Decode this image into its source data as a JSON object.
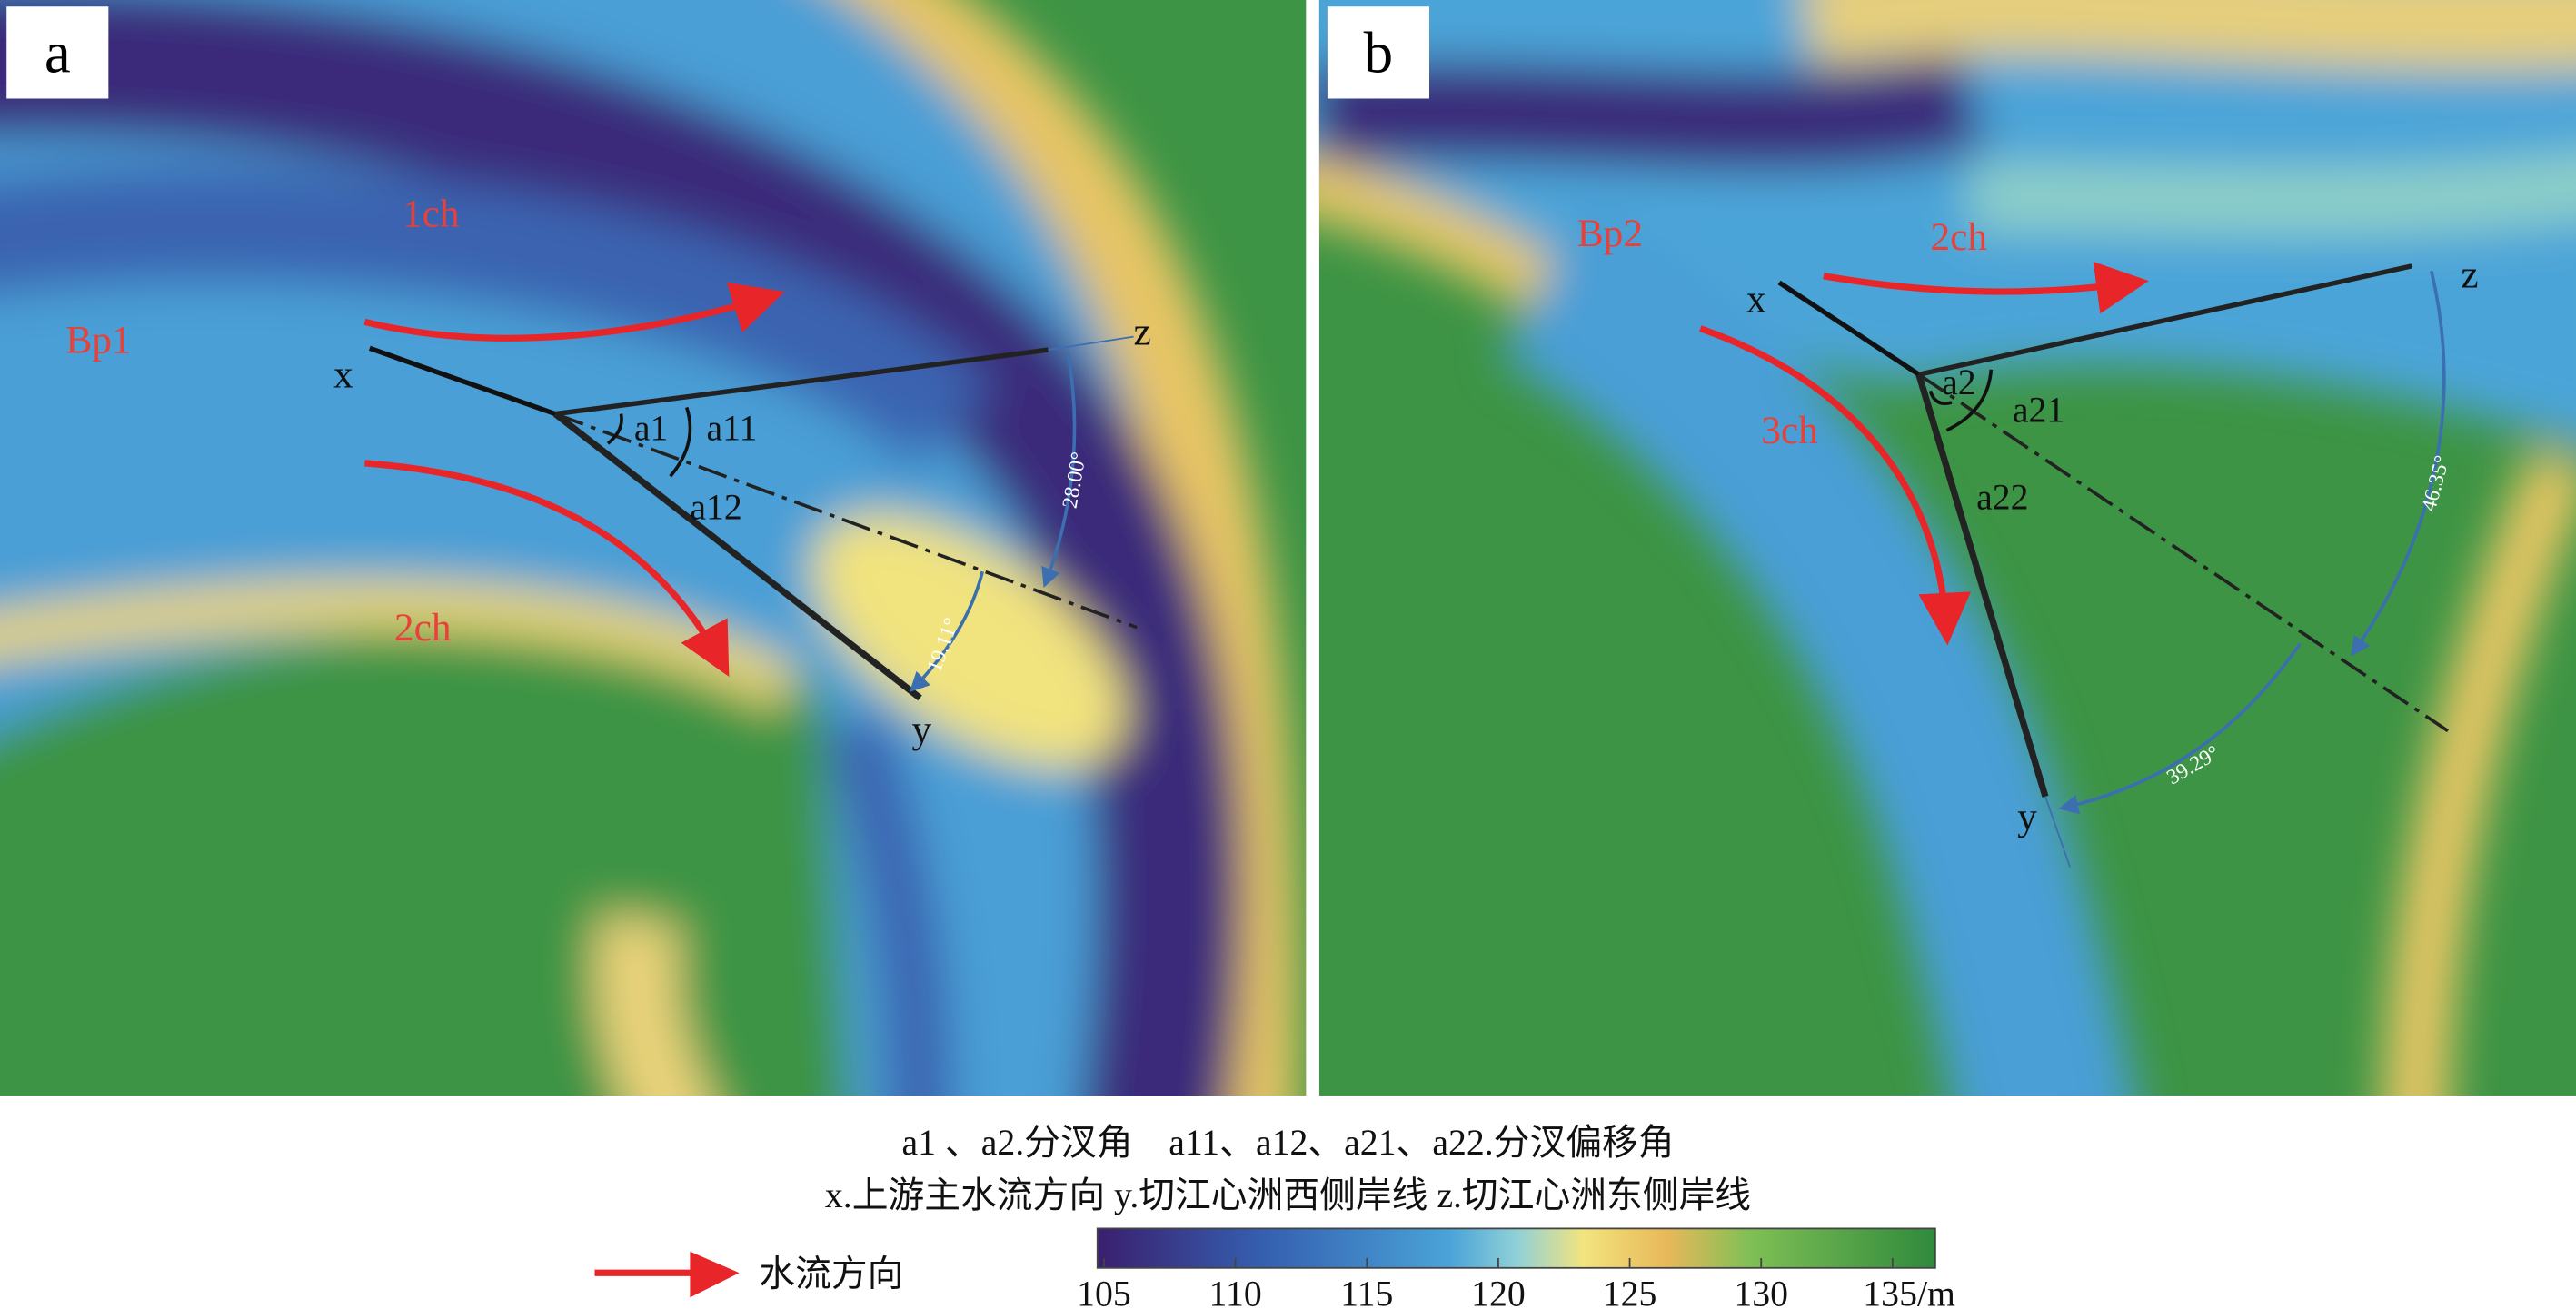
{
  "panels": [
    {
      "letter": "a",
      "region": "Bp1",
      "channels": [
        "1ch",
        "2ch"
      ],
      "points": [
        "x",
        "y",
        "z"
      ],
      "angles": [
        "a1",
        "a11",
        "a12"
      ],
      "angle_values": [
        "28.00°",
        "19.11°"
      ]
    },
    {
      "letter": "b",
      "region": "Bp2",
      "channels": [
        "2ch",
        "3ch"
      ],
      "points": [
        "x",
        "y",
        "z"
      ],
      "angles": [
        "a2",
        "a21",
        "a22"
      ],
      "angle_values": [
        "46.35°",
        "39.29°"
      ]
    }
  ],
  "legend": {
    "line1": "a1 、a2.分汊角　a11、a12、a21、a22.分汊偏移角",
    "line2": "x.上游主水流方向 y.切江心洲西侧岸线 z.切江心洲东侧岸线",
    "flow": "水流方向"
  },
  "colorbar": {
    "ticks": [
      "105",
      "110",
      "115",
      "120",
      "125",
      "130",
      "135/m"
    ]
  }
}
